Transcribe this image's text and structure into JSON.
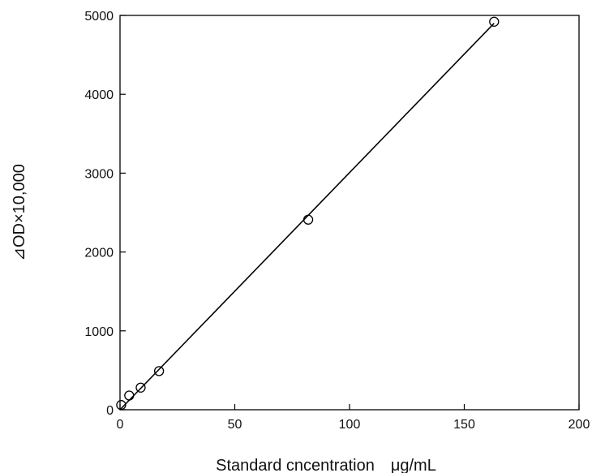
{
  "chart_data": {
    "type": "scatter",
    "title": "",
    "xlabel": "Standard cncentration　μg/mL",
    "ylabel": "⊿OD×10,000",
    "xlim": [
      0,
      200
    ],
    "ylim": [
      0,
      5000
    ],
    "x_ticks": [
      0,
      50,
      100,
      150,
      200
    ],
    "y_ticks": [
      0,
      1000,
      2000,
      3000,
      4000,
      5000
    ],
    "x_tick_labels": [
      "0",
      "50",
      "100",
      "150",
      "200"
    ],
    "y_tick_labels": [
      "0",
      "1000",
      "2000",
      "3000",
      "4000",
      "5000"
    ],
    "grid": false,
    "legend": "none",
    "series": [
      {
        "x": [
          0.5,
          4,
          9,
          17,
          82,
          163
        ],
        "y": [
          60,
          180,
          280,
          490,
          2410,
          4920
        ],
        "marker": "open-circle",
        "color": "#000000"
      }
    ],
    "fit_line": {
      "x": [
        0,
        163
      ],
      "y": [
        0,
        4900
      ]
    }
  }
}
